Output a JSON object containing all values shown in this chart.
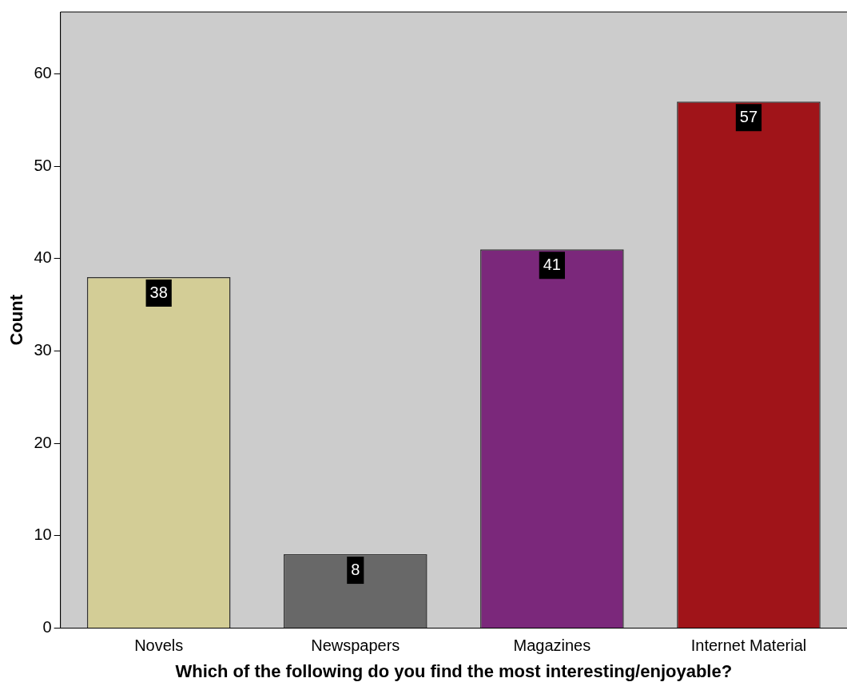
{
  "chart_data": {
    "type": "bar",
    "xlabel": "Which of the following do you find the most interesting/enjoyable?",
    "ylabel": "Count",
    "categories": [
      "Novels",
      "Newspapers",
      "Magazines",
      "Internet Material"
    ],
    "values": [
      38,
      8,
      41,
      57
    ],
    "colors": [
      "#d3cd96",
      "#686868",
      "#7b287b",
      "#a01419"
    ],
    "ylim": [
      0,
      66.7
    ],
    "yticks": [
      0,
      10,
      20,
      30,
      40,
      50,
      60
    ],
    "grid": false,
    "legend": false,
    "data_labels": true
  }
}
